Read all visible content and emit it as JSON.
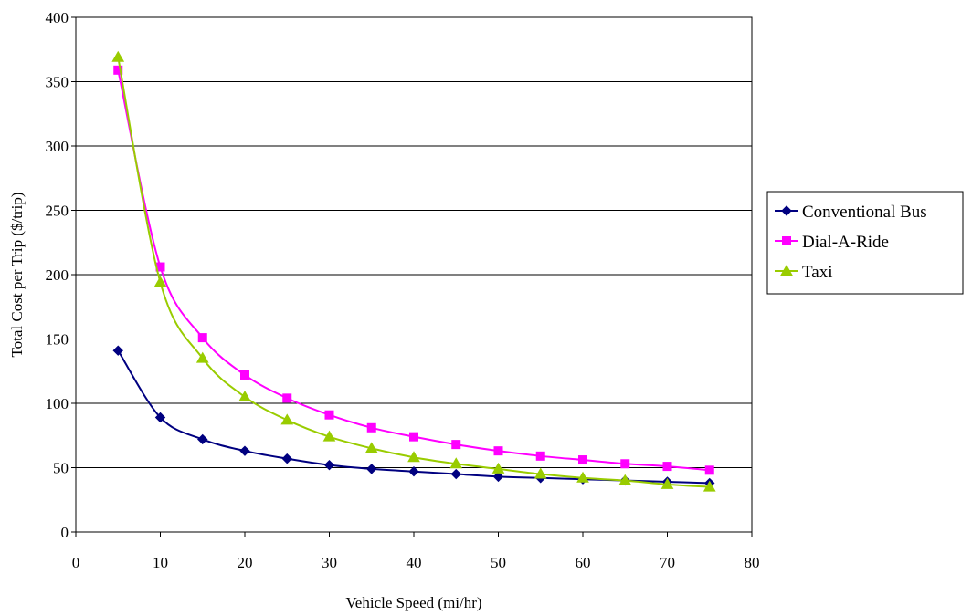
{
  "chart_data": {
    "type": "line",
    "title": "",
    "xlabel": "Vehicle Speed (mi/hr)",
    "ylabel": "Total Cost per Trip ($/trip)",
    "xlim": [
      0,
      80
    ],
    "ylim": [
      0,
      400
    ],
    "xticks": [
      0,
      10,
      20,
      30,
      40,
      50,
      60,
      70,
      80
    ],
    "yticks": [
      0,
      50,
      100,
      150,
      200,
      250,
      300,
      350,
      400
    ],
    "grid": "horizontal",
    "legend_position": "right",
    "x": [
      5,
      10,
      15,
      20,
      25,
      30,
      35,
      40,
      45,
      50,
      55,
      60,
      65,
      70,
      75
    ],
    "series": [
      {
        "name": "Conventional Bus",
        "color": "#000080",
        "marker": "diamond",
        "values": [
          141,
          89,
          72,
          63,
          57,
          52,
          49,
          47,
          45,
          43,
          42,
          41,
          40,
          39,
          38
        ]
      },
      {
        "name": "Dial-A-Ride",
        "color": "#FF00FF",
        "marker": "square",
        "values": [
          359,
          206,
          151,
          122,
          104,
          91,
          81,
          74,
          68,
          63,
          59,
          56,
          53,
          51,
          48
        ]
      },
      {
        "name": "Taxi",
        "color": "#99CC00",
        "marker": "triangle",
        "values": [
          369,
          194,
          135,
          105,
          87,
          74,
          65,
          58,
          53,
          49,
          45,
          42,
          40,
          37,
          35
        ]
      }
    ]
  }
}
